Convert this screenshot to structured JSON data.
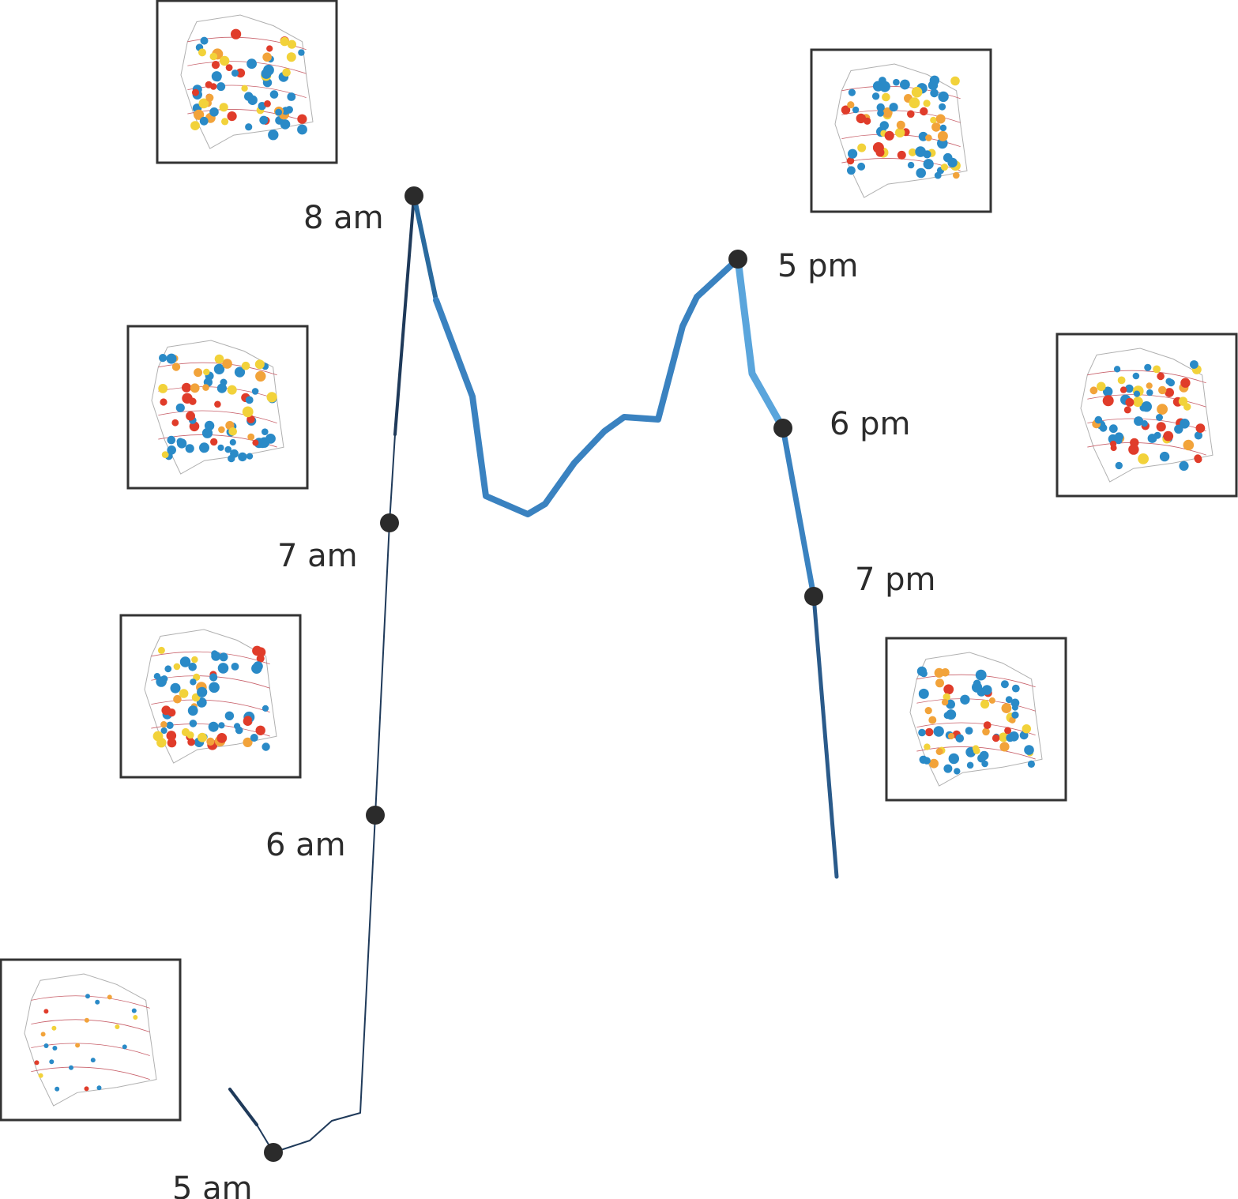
{
  "chart_data": {
    "type": "line",
    "title": "",
    "xlabel": "",
    "ylabel": "",
    "grid": false,
    "legend": "none",
    "line_color_dark": "#1f3a5a",
    "line_color_mid": "#3a82c0",
    "line_color_light": "#5aa5dc",
    "marker_color": "#2b2b2b",
    "labeled_points": [
      {
        "label": "5 am"
      },
      {
        "label": "6 am"
      },
      {
        "label": "7 am"
      },
      {
        "label": "8 am"
      },
      {
        "label": "5 pm"
      },
      {
        "label": "6 pm"
      },
      {
        "label": "7 pm"
      }
    ],
    "map_insets": [
      {
        "time": "5 am",
        "icon": "heatmap-map-icon"
      },
      {
        "time": "6 am",
        "icon": "heatmap-map-icon"
      },
      {
        "time": "7 am",
        "icon": "heatmap-map-icon"
      },
      {
        "time": "8 am",
        "icon": "heatmap-map-icon"
      },
      {
        "time": "5 pm",
        "icon": "heatmap-map-icon"
      },
      {
        "time": "6 pm",
        "icon": "heatmap-map-icon"
      },
      {
        "time": "7 pm",
        "icon": "heatmap-map-icon"
      }
    ]
  }
}
